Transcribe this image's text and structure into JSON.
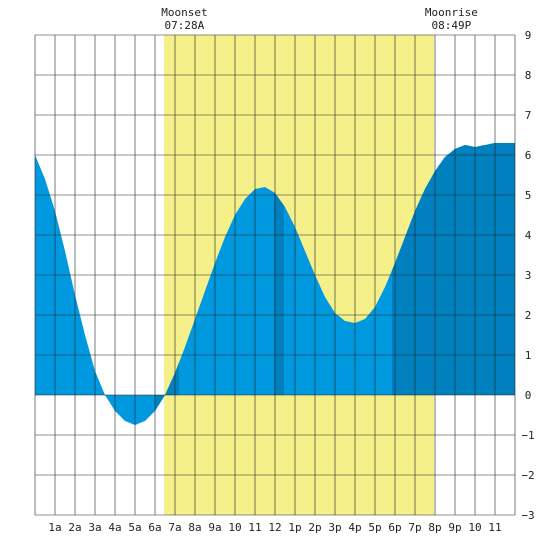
{
  "chart_data": {
    "type": "area",
    "x_ticks": [
      "1a",
      "2a",
      "3a",
      "4a",
      "5a",
      "6a",
      "7a",
      "8a",
      "9a",
      "10",
      "11",
      "12",
      "1p",
      "2p",
      "3p",
      "4p",
      "5p",
      "6p",
      "7p",
      "8p",
      "9p",
      "10",
      "11"
    ],
    "y_ticks": [
      9,
      8,
      7,
      6,
      5,
      4,
      3,
      2,
      1,
      0,
      -1,
      -2,
      -3
    ],
    "xlim": [
      0,
      24
    ],
    "ylim": [
      -3,
      9
    ],
    "grid": true,
    "daylight_band": {
      "start_hour": 6.45,
      "end_hour": 19.95,
      "color": "#f5f08a"
    },
    "annotations": [
      {
        "label": "Moonset",
        "time": "07:28A",
        "hour": 7.47
      },
      {
        "label": "Moonrise",
        "time": "08:49P",
        "hour": 20.82
      }
    ],
    "series": [
      {
        "x": [
          0,
          0.5,
          1,
          1.5,
          2,
          2.5,
          3,
          3.5,
          4,
          4.5,
          5,
          5.5,
          6,
          6.5,
          7,
          7.5,
          8,
          8.5,
          9,
          9.5,
          10,
          10.5,
          11,
          11.5,
          12,
          12.5,
          13,
          13.5,
          14,
          14.5,
          15,
          15.5,
          16,
          16.5,
          17,
          17.5,
          18,
          18.5,
          19,
          19.5,
          20,
          20.5,
          21,
          21.5,
          22,
          22.5,
          23,
          23.5,
          24
        ],
        "values": [
          6.0,
          5.4,
          4.6,
          3.6,
          2.5,
          1.5,
          0.6,
          0.0,
          -0.4,
          -0.65,
          -0.75,
          -0.65,
          -0.4,
          0.0,
          0.55,
          1.2,
          1.9,
          2.6,
          3.3,
          3.95,
          4.5,
          4.9,
          5.15,
          5.2,
          5.05,
          4.7,
          4.2,
          3.6,
          3.0,
          2.45,
          2.05,
          1.85,
          1.8,
          1.9,
          2.2,
          2.7,
          3.3,
          3.95,
          4.6,
          5.15,
          5.6,
          5.95,
          6.15,
          6.25,
          6.2,
          6.25,
          6.3,
          6.3,
          6.3
        ]
      }
    ],
    "colors": {
      "light_fill": "#0099e0",
      "dark_fill": "#0080bf",
      "grid": "#222222"
    },
    "dark_segments": [
      [
        6.0,
        7.2
      ],
      [
        11.95,
        12.45
      ],
      [
        17.85,
        24
      ]
    ]
  }
}
